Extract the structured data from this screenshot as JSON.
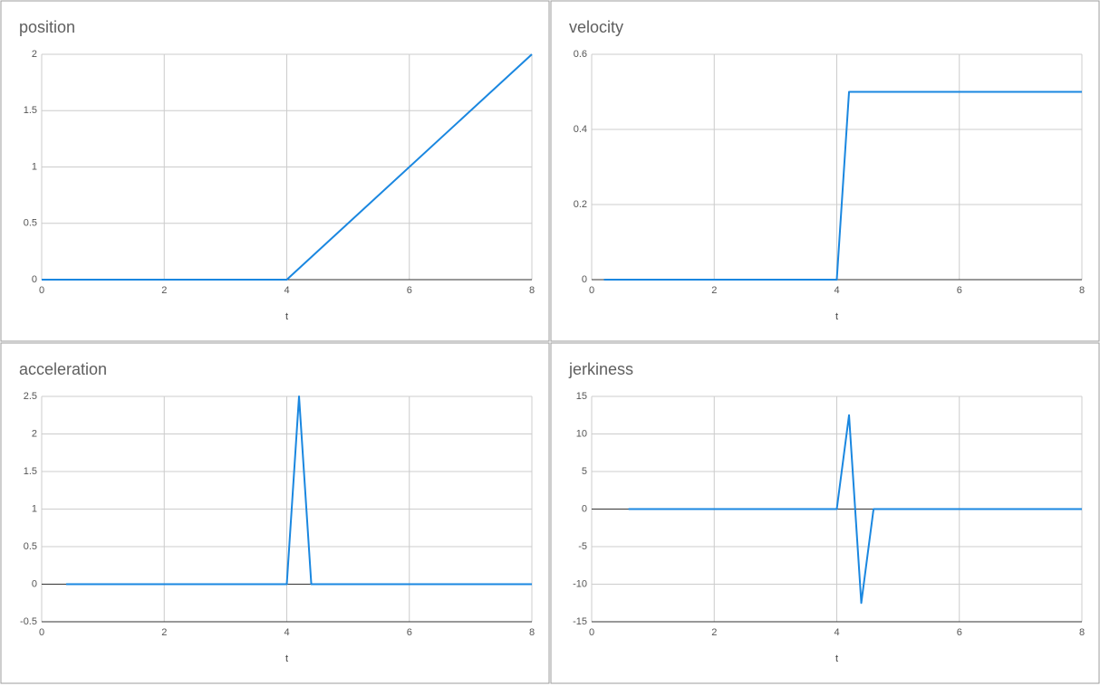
{
  "chart_data": [
    {
      "type": "line",
      "title": "position",
      "x_label": "t",
      "x": [
        0,
        4,
        8
      ],
      "values": [
        0,
        0,
        2
      ],
      "color": "#1a87e0",
      "xlim": [
        0,
        8
      ],
      "xticks": [
        0,
        2,
        4,
        6,
        8
      ],
      "ylim": [
        0,
        2
      ],
      "yticks": [
        0,
        0.5,
        1,
        1.5,
        2
      ],
      "grid": true
    },
    {
      "type": "line",
      "title": "velocity",
      "x_label": "t",
      "x": [
        0.2,
        4,
        4.2,
        8
      ],
      "values": [
        0,
        0,
        0.5,
        0.5
      ],
      "color": "#1a87e0",
      "xlim": [
        0,
        8
      ],
      "xticks": [
        0,
        2,
        4,
        6,
        8
      ],
      "ylim": [
        0,
        0.6
      ],
      "yticks": [
        0,
        0.2,
        0.4,
        0.6
      ],
      "grid": true
    },
    {
      "type": "line",
      "title": "acceleration",
      "x_label": "t",
      "x": [
        0.4,
        4,
        4.2,
        4.4,
        8
      ],
      "values": [
        0,
        0,
        2.5,
        0,
        0
      ],
      "color": "#1a87e0",
      "xlim": [
        0,
        8
      ],
      "xticks": [
        0,
        2,
        4,
        6,
        8
      ],
      "ylim": [
        -0.5,
        2.5
      ],
      "yticks": [
        -0.5,
        0,
        0.5,
        1,
        1.5,
        2,
        2.5
      ],
      "grid": true
    },
    {
      "type": "line",
      "title": "jerkiness",
      "x_label": "t",
      "x": [
        0.6,
        4,
        4.2,
        4.4,
        4.6,
        8
      ],
      "values": [
        0,
        0,
        12.5,
        -12.5,
        0,
        0
      ],
      "color": "#1a87e0",
      "xlim": [
        0,
        8
      ],
      "xticks": [
        0,
        2,
        4,
        6,
        8
      ],
      "ylim": [
        -15,
        15
      ],
      "yticks": [
        -15,
        -10,
        -5,
        0,
        5,
        10,
        15
      ],
      "grid": true
    }
  ]
}
